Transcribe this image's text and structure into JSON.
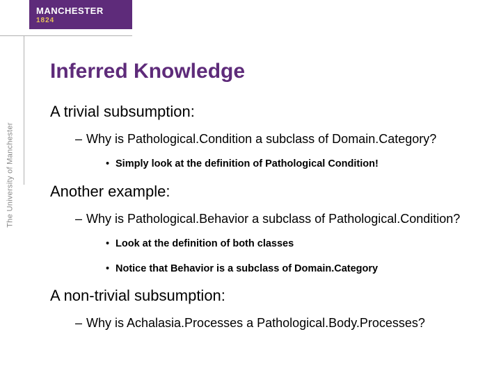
{
  "brand": {
    "name": "MANCHESTER",
    "year": "1824",
    "side_text": "The University of Manchester",
    "logo_bg": "#5e2b7a",
    "logo_text_color": "#ffffff",
    "logo_year_color": "#e6c15a",
    "divider_color": "#b0b0b0"
  },
  "slide": {
    "title": "Inferred Knowledge",
    "title_color": "#5e2b7a",
    "background_color": "#ffffff",
    "items": {
      "t1": "A trivial subsumption:",
      "t1_a": "Why is Pathological.Condition a subclass of Domain.Category?",
      "t1_a_i": "Simply look at the definition of Pathological Condition!",
      "t2": "Another example:",
      "t2_a": "Why is Pathological.Behavior a subclass of Pathological.Condition?",
      "t2_a_i": "Look at the definition of both classes",
      "t2_a_ii": "Notice that Behavior is a subclass of Domain.Category",
      "t3": "A non-trivial subsumption:",
      "t3_a": "Why is Achalasia.Processes a Pathological.Body.Processes?"
    }
  }
}
